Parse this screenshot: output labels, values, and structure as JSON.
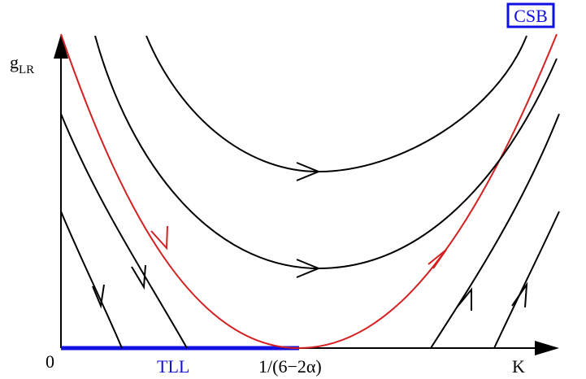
{
  "labels": {
    "y_axis": "g",
    "y_axis_sub": "LR",
    "x_axis": "K",
    "origin": "0",
    "fixed_line": "TLL",
    "critical_point": "1/(6−2α)",
    "phase_box": "CSB"
  },
  "colors": {
    "axes": "#000000",
    "flow_lines": "#000000",
    "separatrix": "#d42020",
    "fixed_line": "#1010e0",
    "phase_box": "#1010e0"
  }
}
